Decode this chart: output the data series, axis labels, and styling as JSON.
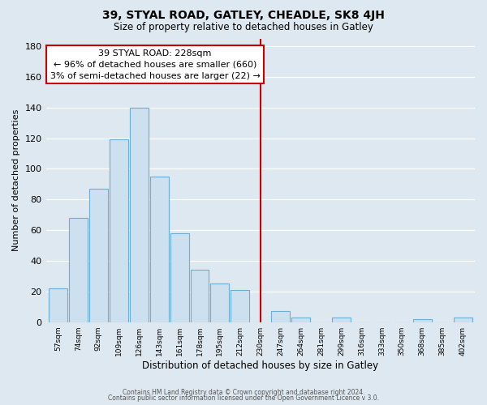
{
  "title": "39, STYAL ROAD, GATLEY, CHEADLE, SK8 4JH",
  "subtitle": "Size of property relative to detached houses in Gatley",
  "xlabel": "Distribution of detached houses by size in Gatley",
  "ylabel": "Number of detached properties",
  "bar_labels": [
    "57sqm",
    "74sqm",
    "92sqm",
    "109sqm",
    "126sqm",
    "143sqm",
    "161sqm",
    "178sqm",
    "195sqm",
    "212sqm",
    "230sqm",
    "247sqm",
    "264sqm",
    "281sqm",
    "299sqm",
    "316sqm",
    "333sqm",
    "350sqm",
    "368sqm",
    "385sqm",
    "402sqm"
  ],
  "bar_values": [
    22,
    68,
    87,
    119,
    140,
    95,
    58,
    34,
    25,
    21,
    0,
    7,
    3,
    0,
    3,
    0,
    0,
    0,
    2,
    0,
    3
  ],
  "bar_color": "#cce0f0",
  "bar_edge_color": "#6baed6",
  "vline_color": "#cc0000",
  "annotation_title": "39 STYAL ROAD: 228sqm",
  "annotation_line1": "← 96% of detached houses are smaller (660)",
  "annotation_line2": "3% of semi-detached houses are larger (22) →",
  "annotation_box_edge": "#cc0000",
  "yticks": [
    0,
    20,
    40,
    60,
    80,
    100,
    120,
    140,
    160,
    180
  ],
  "ylim": [
    0,
    185
  ],
  "footer1": "Contains HM Land Registry data © Crown copyright and database right 2024.",
  "footer2": "Contains public sector information licensed under the Open Government Licence v 3.0.",
  "fig_bg_color": "#dde8f0",
  "plot_bg_color": "#dde8f0",
  "grid_color": "#ffffff"
}
